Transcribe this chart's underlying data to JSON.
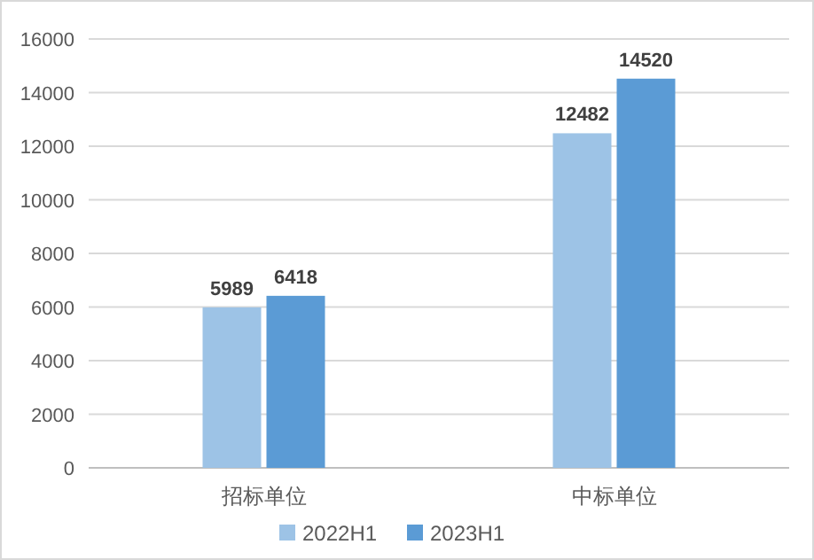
{
  "chart_data": {
    "type": "bar",
    "categories": [
      "招标单位",
      "中标单位"
    ],
    "series": [
      {
        "name": "2022H1",
        "color": "#9dc3e6",
        "values": [
          5989,
          12482
        ]
      },
      {
        "name": "2023H1",
        "color": "#5b9bd5",
        "values": [
          6418,
          14520
        ]
      }
    ],
    "ylim": [
      0,
      16000
    ],
    "yticks": [
      0,
      2000,
      4000,
      6000,
      8000,
      10000,
      12000,
      14000,
      16000
    ],
    "grid": "y",
    "legend": "bottom",
    "data_labels": true
  }
}
